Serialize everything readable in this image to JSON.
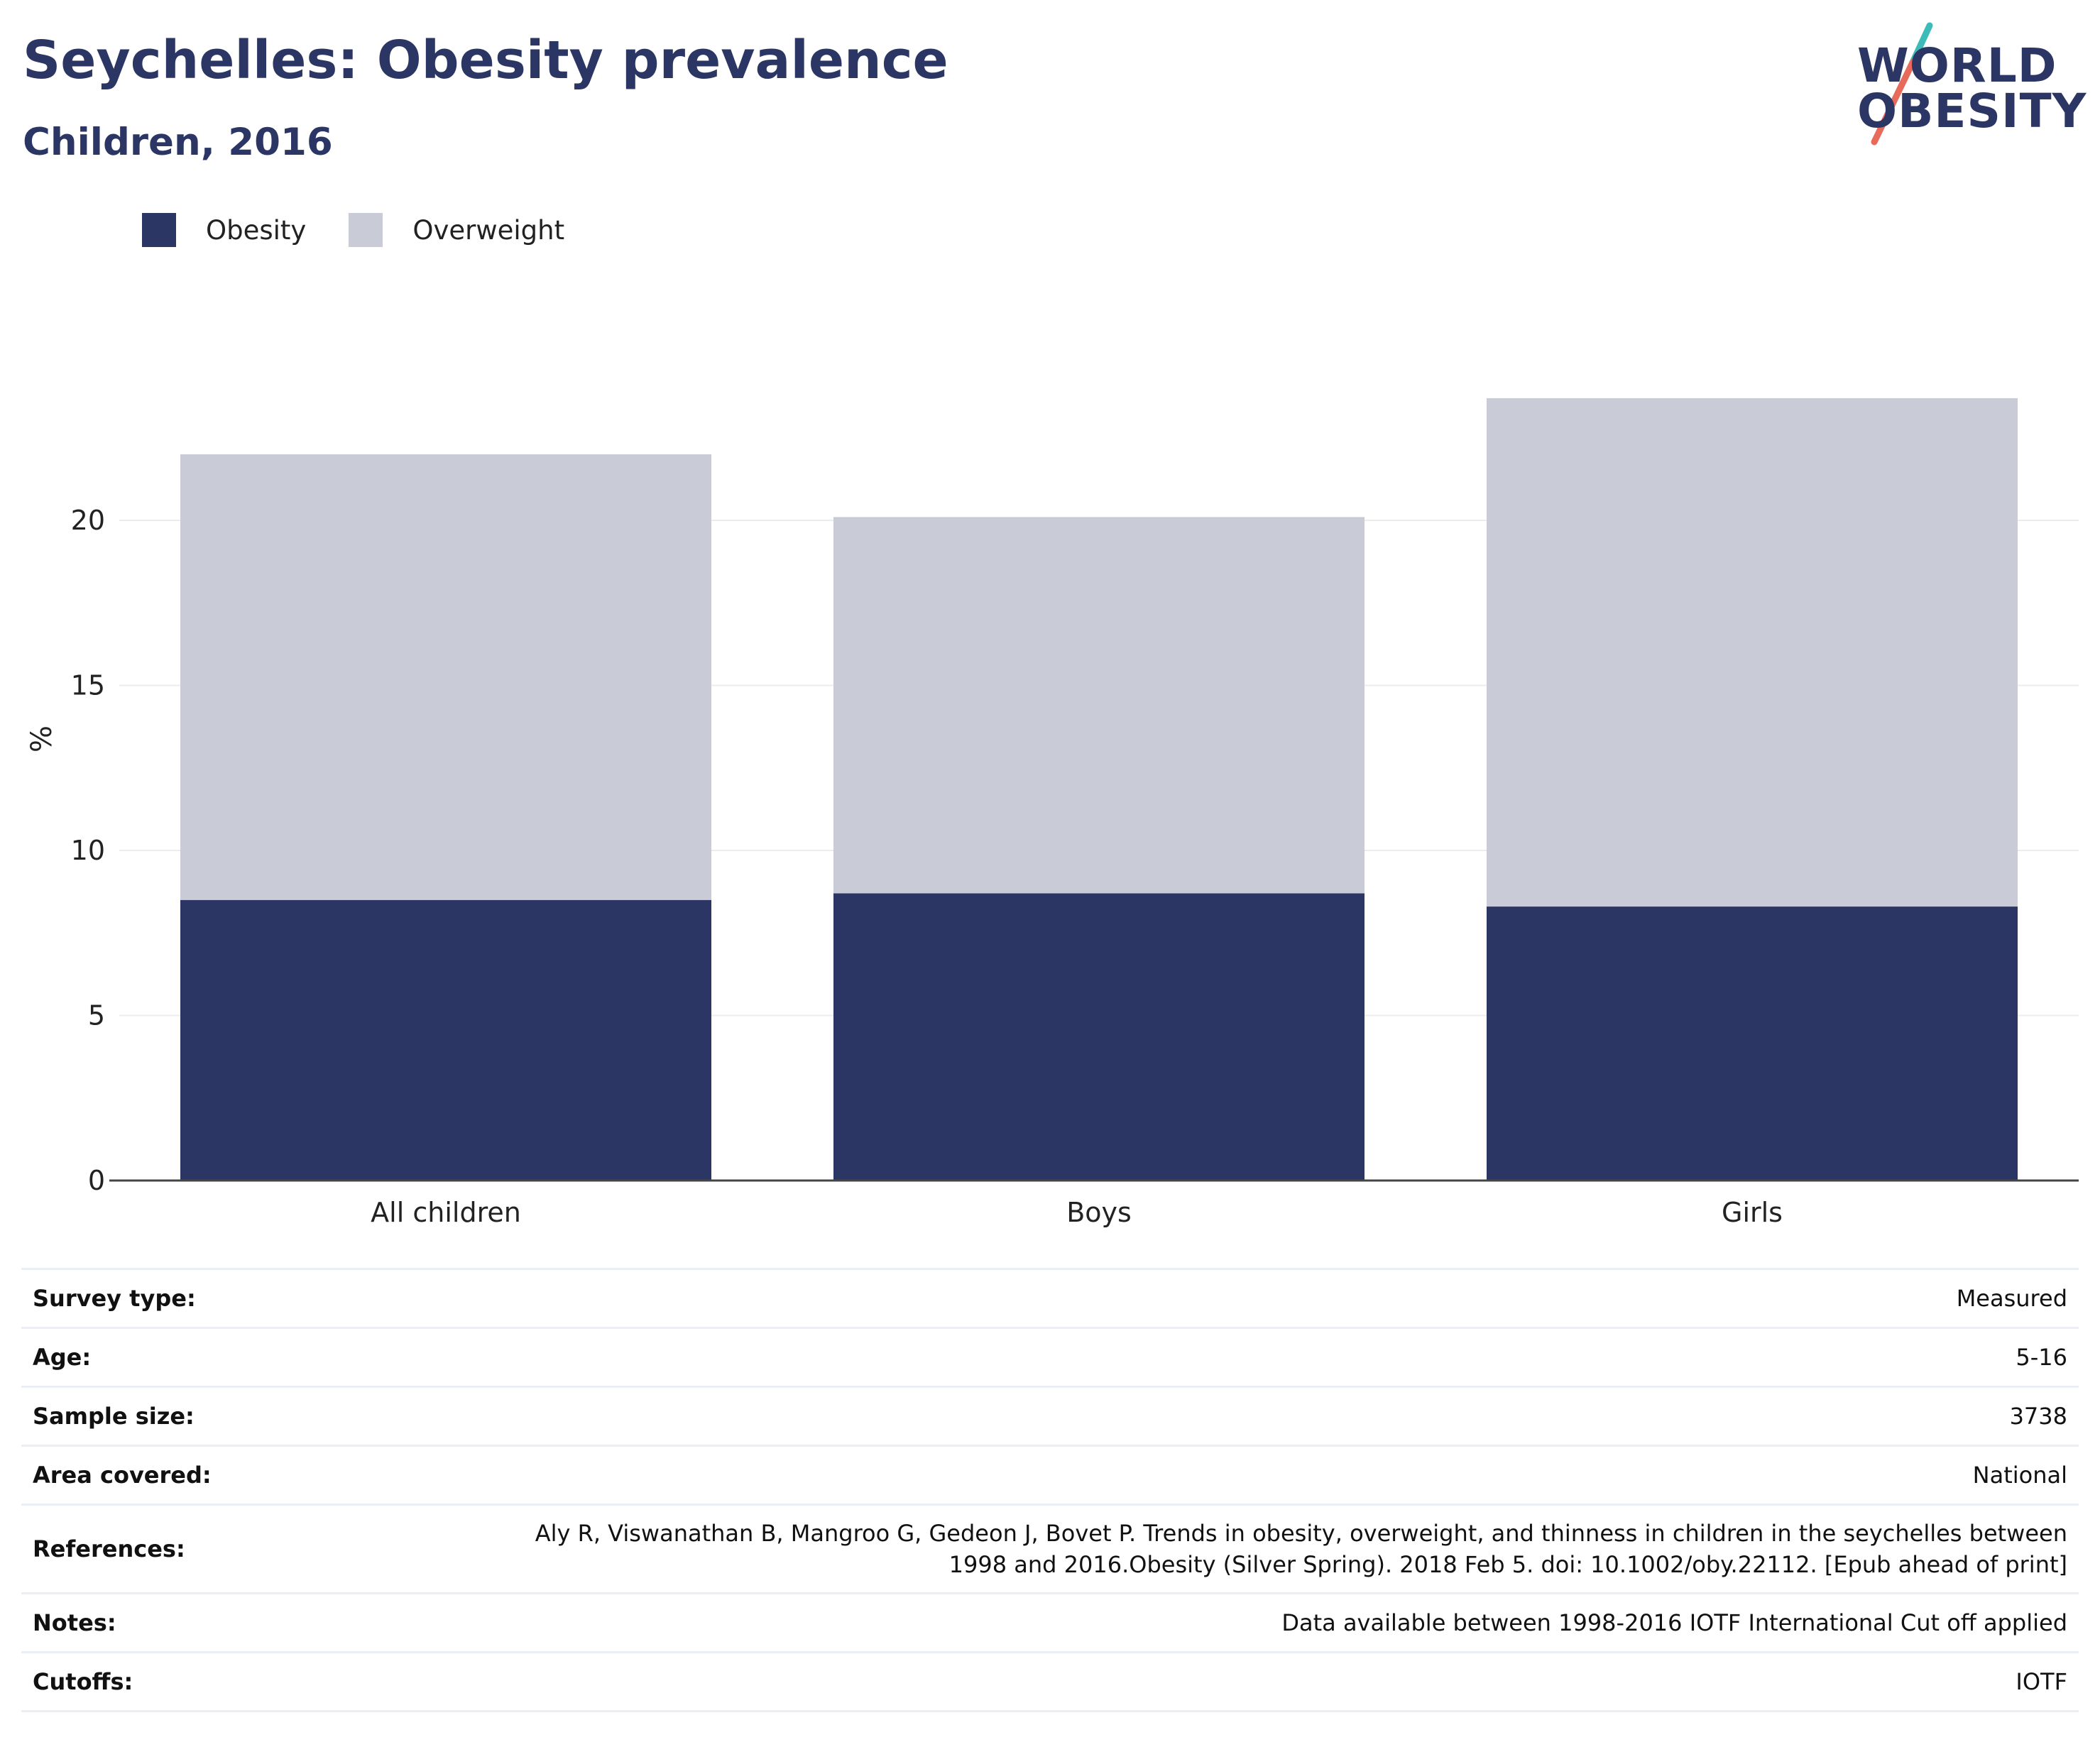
{
  "header": {
    "title": "Seychelles: Obesity prevalence",
    "subtitle": "Children, 2016",
    "logo_line1": "WORLD",
    "logo_line2": "OBESITY"
  },
  "colors": {
    "obesity": "#2b3664",
    "overweight": "#c9cbd7",
    "accent_teal": "#3dbbb9",
    "accent_coral": "#e86a5b"
  },
  "chart_data": {
    "type": "bar",
    "stacked": true,
    "categories": [
      "All children",
      "Boys",
      "Girls"
    ],
    "series": [
      {
        "name": "Obesity",
        "values": [
          8.5,
          8.7,
          8.3
        ]
      },
      {
        "name": "Overweight",
        "values": [
          13.5,
          11.4,
          15.4
        ]
      }
    ],
    "ylabel": "%",
    "ylim": [
      0,
      24
    ],
    "yticks": [
      0,
      5,
      10,
      15,
      20
    ],
    "grid": true,
    "legend": "top-left"
  },
  "info": [
    {
      "label": "Survey type:",
      "value": "Measured"
    },
    {
      "label": "Age:",
      "value": "5-16"
    },
    {
      "label": "Sample size:",
      "value": "3738"
    },
    {
      "label": "Area covered:",
      "value": "National"
    },
    {
      "label": "References:",
      "value": "Aly R, Viswanathan B, Mangroo G, Gedeon J, Bovet P. Trends in obesity, overweight, and thinness in children in the seychelles between 1998 and 2016.Obesity (Silver Spring). 2018 Feb 5. doi: 10.1002/oby.22112. [Epub ahead of print]"
    },
    {
      "label": "Notes:",
      "value": "Data available between 1998-2016 IOTF International Cut off applied"
    },
    {
      "label": "Cutoffs:",
      "value": "IOTF"
    }
  ]
}
